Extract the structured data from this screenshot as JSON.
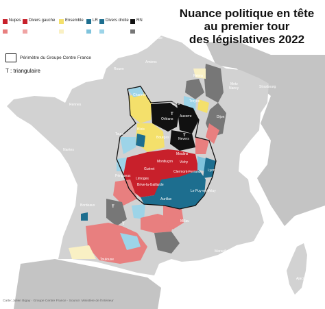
{
  "title": [
    "Nuance politique en tête",
    "au premier tour",
    "des législatives 2022"
  ],
  "legend": [
    {
      "label": "Nupes",
      "color": "#c8202b",
      "light": "#e87f7f"
    },
    {
      "label": "Divers gauche",
      "color": "#c8202b",
      "light": "#f0a4a4"
    },
    {
      "label": "Ensemble",
      "color": "#f4e06b",
      "light": "#f9f0c4"
    },
    {
      "label": "LR",
      "color": "#1d6e8f",
      "light": "#7fc3dc"
    },
    {
      "label": "Divers droite",
      "color": "#1d6e8f",
      "light": "#9dd4e8"
    },
    {
      "label": "RN",
      "color": "#111111",
      "light": "#777777"
    }
  ],
  "perimeter_label": "Périmètre du Groupe Centre France",
  "triangular_label": "T : triangulaire",
  "credit": "Carte: Julien Bigay · Groupe Centre France · Source: Ministère de l'Intérieur",
  "colors": {
    "france_gray": "#d2d2d2",
    "outside_gray": "#c0c0c0",
    "nupes": "#c8202b",
    "nupes_light": "#e87f7f",
    "ensemble": "#f4e06b",
    "lr": "#1d6e8f",
    "lr_light": "#7fc3dc",
    "rn": "#111111",
    "rn_light": "#777777"
  },
  "cities": [
    {
      "name": "Lille"
    },
    {
      "name": "Amiens"
    },
    {
      "name": "Rouen"
    },
    {
      "name": "Caen"
    },
    {
      "name": "Reims"
    },
    {
      "name": "Metz"
    },
    {
      "name": "Nancy"
    },
    {
      "name": "Strasbourg"
    },
    {
      "name": "Rennes"
    },
    {
      "name": "Chartres"
    },
    {
      "name": "Orléans"
    },
    {
      "name": "Troyes"
    },
    {
      "name": "Sens"
    },
    {
      "name": "Auxerre"
    },
    {
      "name": "Blois"
    },
    {
      "name": "Tours"
    },
    {
      "name": "Bourges"
    },
    {
      "name": "Nevers"
    },
    {
      "name": "Dijon"
    },
    {
      "name": "Nantes"
    },
    {
      "name": "Moulins"
    },
    {
      "name": "Vichy"
    },
    {
      "name": "Montluçon"
    },
    {
      "name": "Guéret"
    },
    {
      "name": "Clermont-Ferrand"
    },
    {
      "name": "Limoges"
    },
    {
      "name": "Lyon"
    },
    {
      "name": "Brive-la-Gaillarde"
    },
    {
      "name": "Aurillac"
    },
    {
      "name": "Le Puy-en-Velay"
    },
    {
      "name": "Périgueux"
    },
    {
      "name": "Bordeaux"
    },
    {
      "name": "Millau"
    },
    {
      "name": "Toulouse"
    },
    {
      "name": "Marseille"
    },
    {
      "name": "Ajaccio"
    }
  ]
}
